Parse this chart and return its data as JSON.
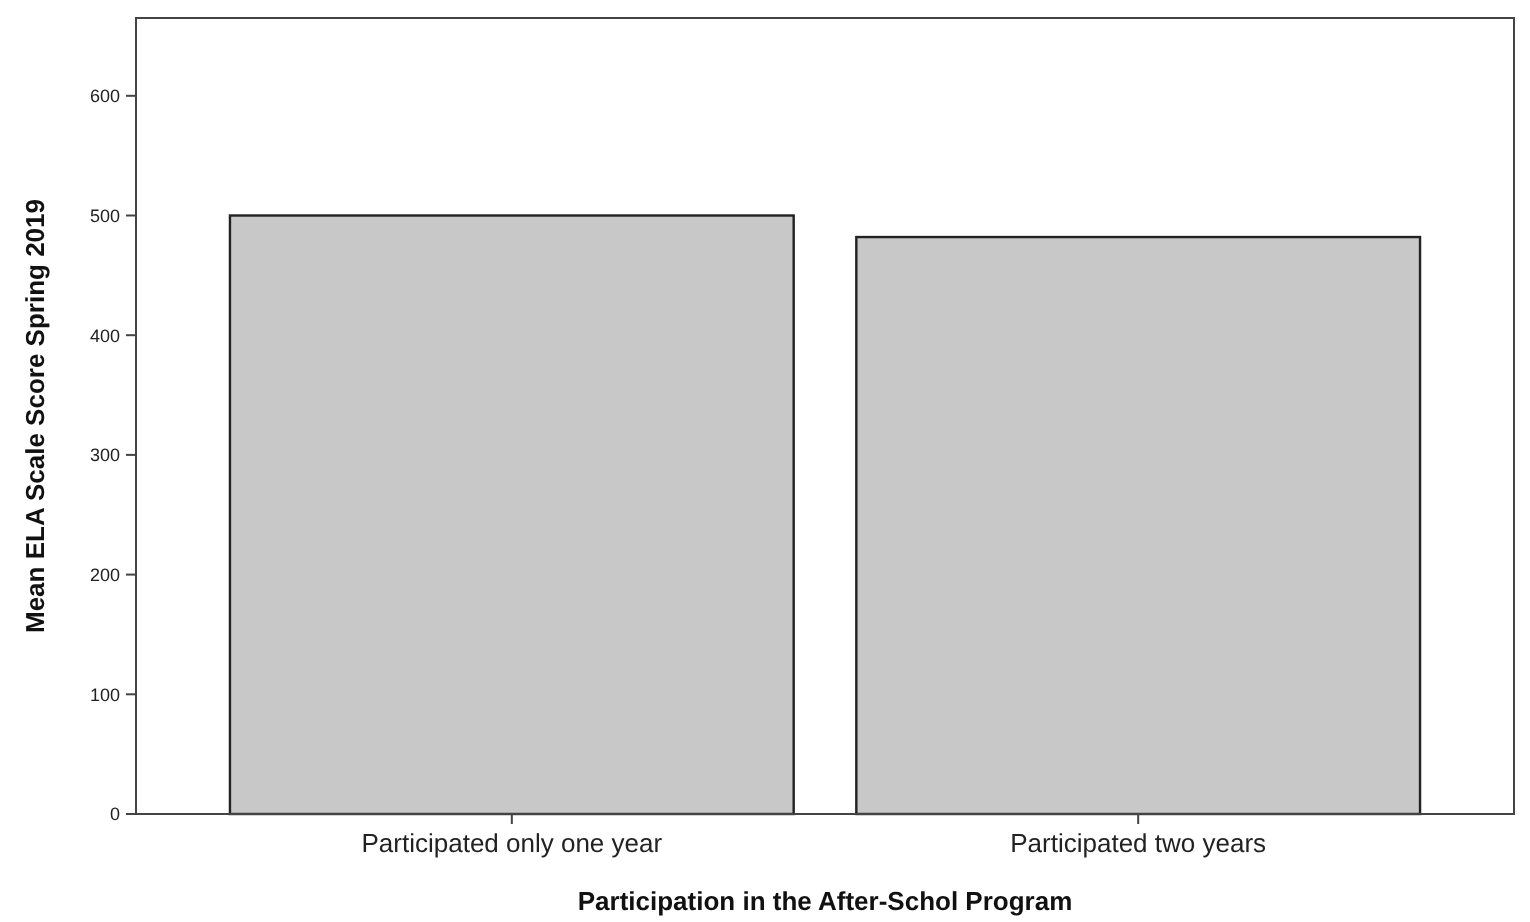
{
  "chart_data": {
    "type": "bar",
    "xlabel": "Participation in the After-Schol Program",
    "ylabel": "Mean ELA Scale Score Spring 2019",
    "categories": [
      "Participated only one year",
      "Participated two years"
    ],
    "values": [
      500,
      482
    ],
    "color": "#c8c8c8",
    "ylim": [
      0,
      665
    ],
    "yticks": [
      0,
      100,
      200,
      300,
      400,
      500,
      600
    ],
    "grid": false
  }
}
